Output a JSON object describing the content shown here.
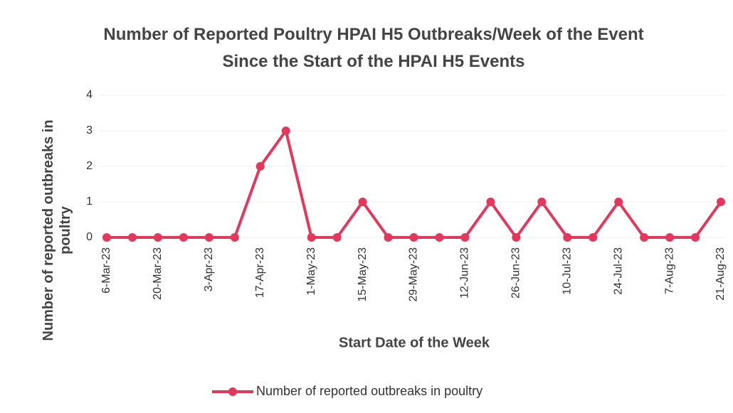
{
  "chart_data": {
    "type": "line",
    "title": "Number of Reported Poultry HPAI H5 Outbreaks/Week of the Event Since the Start of the HPAI H5 Events",
    "x_label": "Start Date of the Week",
    "y_label": "Number of reported outbreaks in poultry",
    "categories": [
      "6-Mar-23",
      null,
      "20-Mar-23",
      null,
      "3-Apr-23",
      null,
      "17-Apr-23",
      null,
      "1-May-23",
      null,
      "15-May-23",
      null,
      "29-May-23",
      null,
      "12-Jun-23",
      null,
      "26-Jun-23",
      null,
      "10-Jul-23",
      null,
      "24-Jul-23",
      null,
      "7-Aug-23",
      null,
      "21-Aug-23"
    ],
    "series": [
      {
        "name": "Number of reported outbreaks in poultry",
        "color": "#e3385c",
        "values": [
          0,
          0,
          0,
          0,
          0,
          0,
          2,
          3,
          0,
          0,
          1,
          0,
          0,
          0,
          0,
          1,
          0,
          1,
          0,
          0,
          1,
          0,
          0,
          0,
          1
        ]
      }
    ],
    "ylim": [
      0,
      4
    ],
    "yticks": [
      0,
      1,
      2,
      3,
      4
    ],
    "grid": true,
    "legend": "bottom"
  }
}
